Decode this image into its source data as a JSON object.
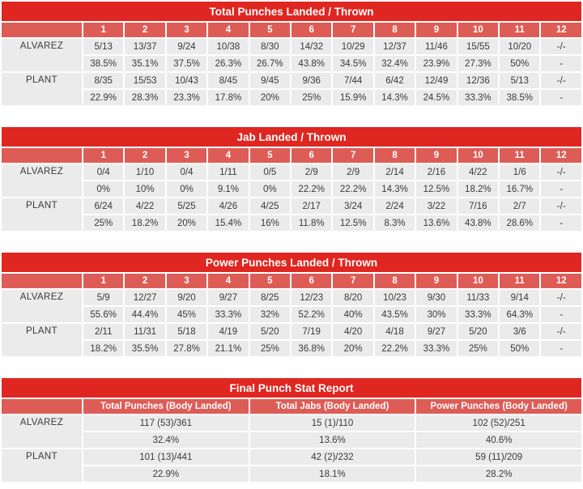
{
  "colors": {
    "title_bar": "#e02620",
    "subheader": "#de5c56",
    "cell": "#ebebeb",
    "cell_text": "#3a3a3a",
    "header_text": "#ffffff",
    "background": "#ffffff"
  },
  "tables": [
    {
      "id": "total-punches",
      "title": "Total Punches Landed / Thrown",
      "columns": [
        "1",
        "2",
        "3",
        "4",
        "5",
        "6",
        "7",
        "8",
        "9",
        "10",
        "11",
        "12"
      ],
      "rows": [
        {
          "fighter": "ALVAREZ",
          "values": [
            "5/13",
            "13/37",
            "9/24",
            "10/38",
            "8/30",
            "14/32",
            "10/29",
            "12/37",
            "11/46",
            "15/55",
            "10/20",
            "-/-"
          ],
          "percents": [
            "38.5%",
            "35.1%",
            "37.5%",
            "26.3%",
            "26.7%",
            "43.8%",
            "34.5%",
            "32.4%",
            "23.9%",
            "27.3%",
            "50%",
            "-"
          ]
        },
        {
          "fighter": "PLANT",
          "values": [
            "8/35",
            "15/53",
            "10/43",
            "8/45",
            "9/45",
            "9/36",
            "7/44",
            "6/42",
            "12/49",
            "12/36",
            "5/13",
            "-/-"
          ],
          "percents": [
            "22.9%",
            "28.3%",
            "23.3%",
            "17.8%",
            "20%",
            "25%",
            "15.9%",
            "14.3%",
            "24.5%",
            "33.3%",
            "38.5%",
            "-"
          ]
        }
      ]
    },
    {
      "id": "jabs",
      "title": "Jab Landed / Thrown",
      "columns": [
        "1",
        "2",
        "3",
        "4",
        "5",
        "6",
        "7",
        "8",
        "9",
        "10",
        "11",
        "12"
      ],
      "rows": [
        {
          "fighter": "ALVAREZ",
          "values": [
            "0/4",
            "1/10",
            "0/4",
            "1/11",
            "0/5",
            "2/9",
            "2/9",
            "2/14",
            "2/16",
            "4/22",
            "1/6",
            "-/-"
          ],
          "percents": [
            "0%",
            "10%",
            "0%",
            "9.1%",
            "0%",
            "22.2%",
            "22.2%",
            "14.3%",
            "12.5%",
            "18.2%",
            "16.7%",
            "-"
          ]
        },
        {
          "fighter": "PLANT",
          "values": [
            "6/24",
            "4/22",
            "5/25",
            "4/26",
            "4/25",
            "2/17",
            "3/24",
            "2/24",
            "3/22",
            "7/16",
            "2/7",
            "-/-"
          ],
          "percents": [
            "25%",
            "18.2%",
            "20%",
            "15.4%",
            "16%",
            "11.8%",
            "12.5%",
            "8.3%",
            "13.6%",
            "43.8%",
            "28.6%",
            "-"
          ]
        }
      ]
    },
    {
      "id": "power-punches",
      "title": "Power Punches Landed / Thrown",
      "columns": [
        "1",
        "2",
        "3",
        "4",
        "5",
        "6",
        "7",
        "8",
        "9",
        "10",
        "11",
        "12"
      ],
      "rows": [
        {
          "fighter": "ALVAREZ",
          "values": [
            "5/9",
            "12/27",
            "9/20",
            "9/27",
            "8/25",
            "12/23",
            "8/20",
            "10/23",
            "9/30",
            "11/33",
            "9/14",
            "-/-"
          ],
          "percents": [
            "55.6%",
            "44.4%",
            "45%",
            "33.3%",
            "32%",
            "52.2%",
            "40%",
            "43.5%",
            "30%",
            "33.3%",
            "64.3%",
            "-"
          ]
        },
        {
          "fighter": "PLANT",
          "values": [
            "2/11",
            "11/31",
            "5/18",
            "4/19",
            "5/20",
            "7/19",
            "4/20",
            "4/18",
            "9/27",
            "5/20",
            "3/6",
            "-/-"
          ],
          "percents": [
            "18.2%",
            "35.5%",
            "27.8%",
            "21.1%",
            "25%",
            "36.8%",
            "20%",
            "22.2%",
            "33.3%",
            "25%",
            "50%",
            "-"
          ]
        }
      ]
    },
    {
      "id": "final-report",
      "title": "Final Punch Stat Report",
      "columns": [
        "Total Punches (Body Landed)",
        "Total Jabs (Body Landed)",
        "Power Punches (Body Landed)"
      ],
      "rows": [
        {
          "fighter": "ALVAREZ",
          "values": [
            "117 (53)/361",
            "15 (1)/110",
            "102 (52)/251"
          ],
          "percents": [
            "32.4%",
            "13.6%",
            "40.6%"
          ]
        },
        {
          "fighter": "PLANT",
          "values": [
            "101 (13)/441",
            "42 (2)/232",
            "59 (11)/209"
          ],
          "percents": [
            "22.9%",
            "18.1%",
            "28.2%"
          ]
        }
      ]
    }
  ]
}
